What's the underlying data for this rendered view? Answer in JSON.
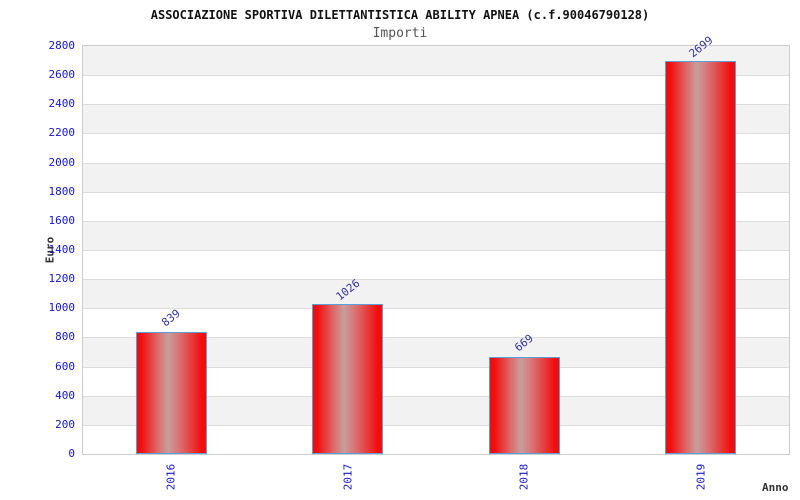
{
  "chart_data": {
    "type": "bar",
    "title": "ASSOCIAZIONE SPORTIVA DILETTANTISTICA ABILITY APNEA (c.f.90046790128)",
    "subtitle": "Importi",
    "xlabel": "Anno",
    "ylabel": "Euro",
    "categories": [
      "2016",
      "2017",
      "2018",
      "2019"
    ],
    "values": [
      839,
      1026,
      669,
      2699
    ],
    "ylim": [
      0,
      2800
    ],
    "ytick_step": 200,
    "grid": "horizontal-bands",
    "legend_position": "none",
    "colors": {
      "bar_red": "#f20d0d",
      "bar_center_highlight": "#c79e9e",
      "bar_border": "#5b9fd8",
      "axis_tick_label": "#1515d0",
      "value_label": "#32329f",
      "band_gray": "#f2f2f2",
      "band_white": "#ffffff",
      "gridline": "#dcdcdc",
      "plot_border": "#cccccc",
      "title": "#111111",
      "subtitle": "#555555",
      "axis_title": "#333333"
    }
  }
}
